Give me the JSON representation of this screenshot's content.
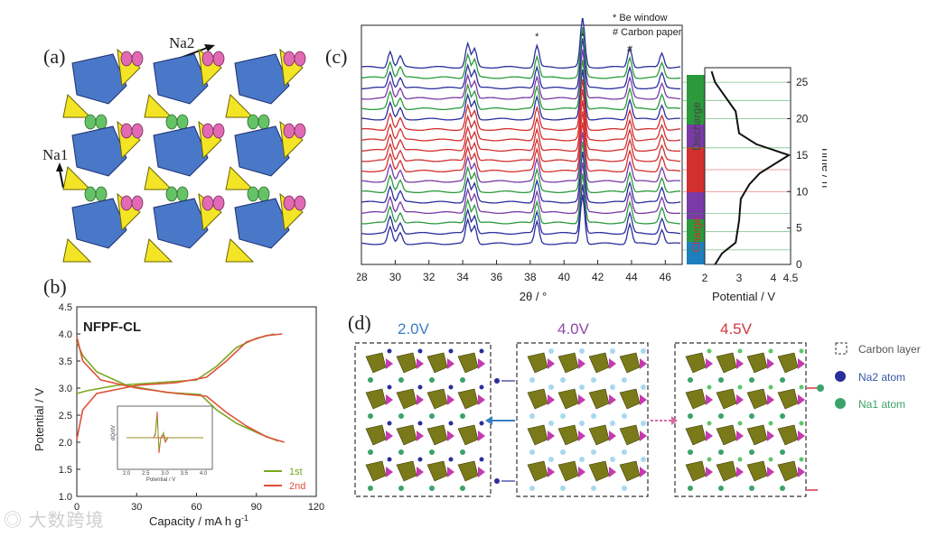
{
  "panels": {
    "a": {
      "letter": "(a)",
      "na2": "Na2",
      "na1": "Na1"
    },
    "b": {
      "letter": "(b)",
      "sample": "NFPF-CL",
      "xlabel": "Capacity / mA h g",
      "xlabel_sup": "-1",
      "ylabel": "Potential / V",
      "legend": [
        "1st",
        "2nd"
      ],
      "inset": {
        "ylabel": "dQ/dV",
        "xlabel": "Potential / V",
        "xticks": [
          "2.0",
          "2.5",
          "3.0",
          "3.5",
          "4.0"
        ]
      }
    },
    "c": {
      "letter": "(c)",
      "xlabel": "2θ / °",
      "legend_be": "* Be window",
      "legend_cp": "# Carbon paper",
      "potential_label": "Potential / V",
      "time_label": "Time / h",
      "charge": "Charge",
      "discharge": "Discharge",
      "pot_ticks": [
        "2",
        "3",
        "4",
        "4.5"
      ],
      "time_ticks": [
        "0",
        "5",
        "10",
        "15",
        "20",
        "25"
      ],
      "markers": [
        "*",
        "*",
        "#"
      ]
    },
    "d": {
      "letter": "(d)",
      "v1": "2.0V",
      "v2": "4.0V",
      "v3": "4.5V",
      "legend": [
        "Carbon layer",
        "Na2 atom",
        "Na1 atom"
      ]
    }
  },
  "colors": {
    "na2": "#2a2f9a",
    "na1": "#3aa36a",
    "c_label": "#d33",
    "v1": "#3a7fc4",
    "v2": "#8c4aa8",
    "v3": "#d2373c"
  },
  "chart_data": [
    {
      "type": "line",
      "title": "NFPF-CL",
      "xlabel": "Capacity / mA h g-1",
      "ylabel": "Potential / V",
      "xlim": [
        0,
        120
      ],
      "ylim": [
        1.0,
        4.5
      ],
      "xticks": [
        0,
        30,
        60,
        90,
        120
      ],
      "yticks": [
        1.0,
        1.5,
        2.0,
        2.5,
        3.0,
        3.5,
        4.0,
        4.5
      ],
      "series": [
        {
          "name": "1st",
          "color": "#7aa81e",
          "charge": [
            [
              0,
              2.9
            ],
            [
              5,
              2.95
            ],
            [
              20,
              3.05
            ],
            [
              40,
              3.1
            ],
            [
              60,
              3.15
            ],
            [
              70,
              3.4
            ],
            [
              80,
              3.75
            ],
            [
              90,
              3.92
            ],
            [
              99,
              4.0
            ]
          ],
          "discharge": [
            [
              0,
              3.85
            ],
            [
              3,
              3.6
            ],
            [
              10,
              3.3
            ],
            [
              25,
              3.05
            ],
            [
              45,
              2.92
            ],
            [
              62,
              2.88
            ],
            [
              70,
              2.6
            ],
            [
              80,
              2.35
            ],
            [
              92,
              2.15
            ],
            [
              101,
              2.02
            ]
          ]
        },
        {
          "name": "2nd",
          "color": "#e0503a",
          "charge": [
            [
              0,
              2.05
            ],
            [
              3,
              2.6
            ],
            [
              10,
              2.9
            ],
            [
              30,
              3.05
            ],
            [
              50,
              3.1
            ],
            [
              65,
              3.2
            ],
            [
              75,
              3.5
            ],
            [
              85,
              3.85
            ],
            [
              95,
              3.97
            ],
            [
              103,
              4.0
            ]
          ],
          "discharge": [
            [
              0,
              3.95
            ],
            [
              3,
              3.5
            ],
            [
              12,
              3.15
            ],
            [
              30,
              3.0
            ],
            [
              50,
              2.9
            ],
            [
              65,
              2.85
            ],
            [
              75,
              2.55
            ],
            [
              85,
              2.3
            ],
            [
              95,
              2.1
            ],
            [
              104,
              2.0
            ]
          ]
        }
      ]
    },
    {
      "type": "line",
      "title": "",
      "xlabel": "2θ / °",
      "ylabel": "",
      "xlim": [
        28,
        47
      ],
      "xticks": [
        28,
        30,
        32,
        34,
        36,
        38,
        40,
        42,
        44,
        46
      ],
      "peaks": [
        29.7,
        30.3,
        34.3,
        34.7,
        38.4,
        41.1,
        43.9,
        45.8
      ],
      "pattern_colors": [
        "#2b2f9c",
        "#2b2f9c",
        "#2b9a3c",
        "#7a3aa8",
        "#2b2f9c",
        "#2b9a3c",
        "#7a3aa8",
        "#d22f2f",
        "#d22f2f",
        "#d22f2f",
        "#d22f2f",
        "#d22f2f",
        "#2b2f9c",
        "#2b9a3c",
        "#7a3aa8",
        "#2b2f9c",
        "#2b9a3c",
        "#2b2f9c"
      ]
    },
    {
      "type": "line",
      "xlabel": "Potential / V",
      "ylabel": "Time / h",
      "xlim": [
        2,
        4.5
      ],
      "ylim": [
        0,
        27
      ],
      "points": [
        [
          2.3,
          0
        ],
        [
          2.5,
          1.5
        ],
        [
          2.9,
          3
        ],
        [
          3.0,
          6
        ],
        [
          3.05,
          9
        ],
        [
          3.3,
          11
        ],
        [
          3.6,
          12.5
        ],
        [
          4.45,
          15
        ],
        [
          3.5,
          16.5
        ],
        [
          3.0,
          18
        ],
        [
          2.9,
          21
        ],
        [
          2.6,
          23
        ],
        [
          2.3,
          25
        ],
        [
          2.2,
          26.5
        ]
      ]
    }
  ]
}
